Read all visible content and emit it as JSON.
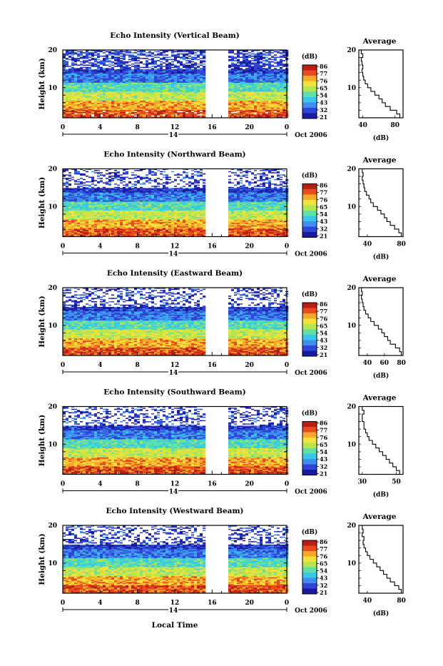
{
  "figure": {
    "x_axis_label": "Local Time",
    "x_ticks": [
      "0",
      "4",
      "8",
      "12",
      "16",
      "20",
      "0"
    ],
    "date_label": "Oct 2006",
    "day_label": "14",
    "y_axis_label": "Height (km)",
    "y_ticks": [
      "20",
      "10"
    ],
    "colorbar_unit": "(dB)",
    "colorbar_ticks": [
      "86",
      "77",
      "76",
      "65",
      "54",
      "43",
      "32",
      "21"
    ],
    "profile_title": "Average",
    "profile_xlabel": "(dB)",
    "colors": {
      "scale": [
        "#1a1aa0",
        "#2f45d8",
        "#3d8ef0",
        "#36c8e6",
        "#5ee0a8",
        "#b7e64c",
        "#f4e23c",
        "#f6a828",
        "#ea4a1e",
        "#b81e12"
      ],
      "gap": "#ffffff",
      "axis": "#000000"
    }
  },
  "chart_data": [
    {
      "type": "heatmap",
      "title": "Echo Intensity (Vertical Beam)",
      "xlabel": "Local Time",
      "ylabel": "Height (km)",
      "xlim": [
        0,
        24
      ],
      "ylim": [
        2,
        20
      ],
      "colorbar": {
        "unit": "(dB)",
        "ticks": [
          86,
          77,
          76,
          65,
          54,
          43,
          32,
          21
        ]
      },
      "data_gap_hours": [
        15.5,
        17.5
      ],
      "date": "Oct 2006",
      "day": "14",
      "profile": {
        "title": "Average",
        "xlabel": "(dB)",
        "xticks": [
          40,
          80
        ],
        "xlim": [
          35,
          90
        ],
        "heights": [
          2,
          3,
          4,
          5,
          6,
          7,
          8,
          9,
          10,
          11,
          12,
          13,
          14,
          15,
          16,
          17,
          18,
          19,
          20
        ],
        "values": [
          86,
          82,
          74,
          68,
          64,
          60,
          55,
          50,
          46,
          43,
          41,
          40,
          39,
          40,
          39,
          38,
          40,
          38,
          37
        ]
      }
    },
    {
      "type": "heatmap",
      "title": "Echo Intensity (Northward Beam)",
      "xlabel": "Local Time",
      "ylabel": "Height (km)",
      "xlim": [
        0,
        24
      ],
      "ylim": [
        2,
        20
      ],
      "colorbar": {
        "unit": "(dB)",
        "ticks": [
          86,
          77,
          76,
          65,
          54,
          43,
          32,
          21
        ]
      },
      "data_gap_hours": [
        15.5,
        17.5
      ],
      "date": "Oct 2006",
      "day": "14",
      "profile": {
        "title": "Average",
        "xlabel": "(dB)",
        "xticks": [
          40,
          80
        ],
        "xlim": [
          30,
          82
        ],
        "heights": [
          2,
          3,
          4,
          5,
          6,
          7,
          8,
          9,
          10,
          11,
          12,
          13,
          14,
          15,
          16,
          17,
          18,
          19,
          20
        ],
        "values": [
          80,
          77,
          72,
          67,
          63,
          60,
          56,
          52,
          47,
          44,
          42,
          39,
          37,
          36,
          35,
          34,
          35,
          34,
          33
        ]
      }
    },
    {
      "type": "heatmap",
      "title": "Echo Intensity (Eastward Beam)",
      "xlabel": "Local Time",
      "ylabel": "Height (km)",
      "xlim": [
        0,
        24
      ],
      "ylim": [
        2,
        20
      ],
      "colorbar": {
        "unit": "(dB)",
        "ticks": [
          86,
          77,
          76,
          65,
          54,
          43,
          32,
          21
        ]
      },
      "data_gap_hours": [
        15.5,
        17.5
      ],
      "date": "Oct 2006",
      "day": "14",
      "profile": {
        "title": "Average",
        "xlabel": "(dB)",
        "xticks": [
          40,
          60,
          80
        ],
        "xlim": [
          30,
          82
        ],
        "heights": [
          2,
          3,
          4,
          5,
          6,
          7,
          8,
          9,
          10,
          11,
          12,
          13,
          14,
          15,
          16,
          17,
          18,
          19,
          20
        ],
        "values": [
          80,
          78,
          73,
          67,
          64,
          60,
          57,
          53,
          48,
          44,
          41,
          38,
          36,
          35,
          34,
          33,
          34,
          33,
          32
        ]
      }
    },
    {
      "type": "heatmap",
      "title": "Echo Intensity (Southward Beam)",
      "xlabel": "Local Time",
      "ylabel": "Height (km)",
      "xlim": [
        0,
        24
      ],
      "ylim": [
        2,
        20
      ],
      "colorbar": {
        "unit": "(dB)",
        "ticks": [
          86,
          77,
          76,
          65,
          54,
          43,
          32,
          21
        ]
      },
      "data_gap_hours": [
        15.5,
        17.5
      ],
      "date": "Oct 2006",
      "day": "14",
      "profile": {
        "title": "Average",
        "xlabel": "(dB)",
        "xticks": [
          30,
          50
        ],
        "xlim": [
          28,
          54
        ],
        "heights": [
          2,
          3,
          4,
          5,
          6,
          7,
          8,
          9,
          10,
          11,
          12,
          13,
          14,
          15,
          16,
          17,
          18,
          19,
          20
        ],
        "values": [
          52,
          50,
          48,
          46,
          44,
          42,
          40,
          38,
          36,
          34,
          33,
          32,
          31,
          31,
          30,
          30,
          31,
          30,
          30
        ]
      }
    },
    {
      "type": "heatmap",
      "title": "Echo Intensity (Westward Beam)",
      "xlabel": "Local Time",
      "ylabel": "Height (km)",
      "xlim": [
        0,
        24
      ],
      "ylim": [
        2,
        20
      ],
      "colorbar": {
        "unit": "(dB)",
        "ticks": [
          86,
          77,
          76,
          65,
          54,
          43,
          32,
          21
        ]
      },
      "data_gap_hours": [
        15.5,
        17.5
      ],
      "date": "Oct 2006",
      "day": "14",
      "profile": {
        "title": "Average",
        "xlabel": "(dB)",
        "xticks": [
          40,
          80
        ],
        "xlim": [
          30,
          82
        ],
        "heights": [
          2,
          3,
          4,
          5,
          6,
          7,
          8,
          9,
          10,
          11,
          12,
          13,
          14,
          15,
          16,
          17,
          18,
          19,
          20
        ],
        "values": [
          80,
          77,
          72,
          67,
          63,
          59,
          55,
          51,
          47,
          43,
          40,
          38,
          36,
          35,
          36,
          34,
          35,
          34,
          33
        ]
      }
    }
  ]
}
